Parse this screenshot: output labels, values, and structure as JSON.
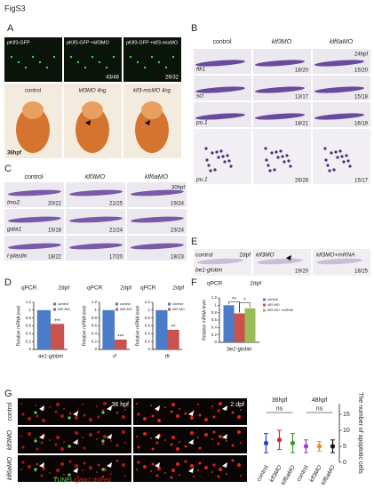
{
  "figure_label": "FigS3",
  "panel_A": {
    "letter": "A",
    "top_images": [
      {
        "label": "pKlf3-GFP"
      },
      {
        "label": "pKlf3-GFP +klf3MO",
        "count": "43/46"
      },
      {
        "label": "pKlf3-GFP +klf3-misMO",
        "count": "26/32"
      }
    ],
    "bottom_images": [
      {
        "label": "control"
      },
      {
        "label": "klf3MO 4ng"
      },
      {
        "label": "klf3-misMO 4ng"
      }
    ],
    "stage": "36hpf"
  },
  "panel_B": {
    "letter": "B",
    "columns": [
      "control",
      "klf3MO",
      "klf6aMO"
    ],
    "stage": "24hpf",
    "rows": [
      {
        "gene": "flk1",
        "counts": [
          "18/20",
          "15/20"
        ]
      },
      {
        "gene": "scl",
        "counts": [
          "13/17",
          "15/18"
        ]
      },
      {
        "gene": "pu.1",
        "counts": [
          "18/21",
          "16/19"
        ]
      },
      {
        "gene": "pu.1",
        "counts": [
          "26/28",
          "15/17"
        ]
      }
    ]
  },
  "panel_C": {
    "letter": "C",
    "columns": [
      "control",
      "klf3MO",
      "klf6aMO"
    ],
    "stage": "30hpf",
    "rows": [
      {
        "gene": "lmo2",
        "counts": [
          "20/22",
          "21/25",
          "19/24"
        ]
      },
      {
        "gene": "gata1",
        "counts": [
          "15/18",
          "21/24",
          "23/24"
        ]
      },
      {
        "gene": "l-plastin",
        "counts": [
          "18/22",
          "17/20",
          "18/23"
        ]
      }
    ]
  },
  "panel_D": {
    "letter": "D"
  },
  "panel_E": {
    "letter": "E",
    "labels": [
      "control",
      "2dpf",
      "klf3MO",
      "klf3MO+mRNA"
    ],
    "gene": "be1-globin",
    "counts": [
      "19/20",
      "18/25"
    ]
  },
  "panel_F": {
    "letter": "F"
  },
  "panel_G": {
    "letter": "G",
    "stages": [
      "36 hpf",
      "2 dpf"
    ],
    "rows": [
      "control",
      "klf3MO",
      "klf6aMO"
    ],
    "caption": [
      "TUNEL",
      "/gata1:dsRed"
    ]
  },
  "chart_data": [
    {
      "type": "bar",
      "title": "qPCR",
      "subtitle": "2dpf",
      "ylabel": "Relative mRNA level",
      "categories": [
        "ae1-globin"
      ],
      "series": [
        {
          "name": "control",
          "color": "#4a7cc9",
          "values": [
            1
          ]
        },
        {
          "name": "klf3 MO",
          "color": "#c9524f",
          "values": [
            0.65
          ]
        }
      ],
      "ylim": [
        0,
        1.2
      ],
      "yticks": [
        0,
        0.2,
        0.4,
        0.6,
        0.8,
        1,
        1.2
      ],
      "annotations": [
        "***"
      ]
    },
    {
      "type": "bar",
      "title": "qPCR",
      "subtitle": "2dpf",
      "ylabel": "Relative mRNA level",
      "categories": [
        "rf"
      ],
      "series": [
        {
          "name": "control",
          "color": "#4a7cc9",
          "values": [
            1
          ]
        },
        {
          "name": "klf3 MO",
          "color": "#c9524f",
          "values": [
            0.25
          ]
        }
      ],
      "ylim": [
        0,
        1.2
      ],
      "yticks": [
        0,
        0.2,
        0.4,
        0.6,
        0.8,
        1,
        1.2
      ],
      "annotations": [
        "***"
      ]
    },
    {
      "type": "bar",
      "title": "qPCR",
      "subtitle": "2dpf",
      "ylabel": "Relative mRNA level",
      "categories": [
        "tfr"
      ],
      "series": [
        {
          "name": "control",
          "color": "#4a7cc9",
          "values": [
            1
          ]
        },
        {
          "name": "klf3 MO",
          "color": "#c9524f",
          "values": [
            0.5
          ]
        }
      ],
      "ylim": [
        0,
        1.2
      ],
      "yticks": [
        0,
        0.2,
        0.4,
        0.6,
        0.8,
        1,
        1.2
      ],
      "annotations": [
        "**"
      ]
    },
    {
      "type": "bar",
      "title": "qPCR",
      "subtitle": "2dpf",
      "ylabel": "Relative mRNA level",
      "categories": [
        "be1-globin"
      ],
      "series": [
        {
          "name": "control",
          "color": "#4a7cc9",
          "values": [
            1
          ]
        },
        {
          "name": "klf3 MO",
          "color": "#c9524f",
          "values": [
            0.78
          ]
        },
        {
          "name": "klf3 MO +mRNA",
          "color": "#9bbb59",
          "values": [
            0.92
          ]
        }
      ],
      "ylim": [
        0,
        1.2
      ],
      "yticks": [
        0,
        0.2,
        0.4,
        0.6,
        0.8,
        1,
        1.2
      ],
      "annotations": [
        "**",
        "*"
      ]
    },
    {
      "type": "errorbar",
      "ylabel": "The number of apoptotic cells",
      "groups": [
        "36hpf",
        "48hpf"
      ],
      "annotations": [
        "ns",
        "ns"
      ],
      "categories": [
        "control",
        "klf3MO",
        "klf6aMO",
        "control",
        "klf3MO",
        "klf6aMO"
      ],
      "values": [
        6,
        7,
        6,
        5,
        5,
        5
      ],
      "errors": [
        3,
        3,
        3,
        2,
        1.5,
        2
      ],
      "colors": [
        "#2b3fd1",
        "#e0202a",
        "#2ca02c",
        "#9b3fd1",
        "#f08a1c",
        "#111111"
      ],
      "ylim": [
        0,
        15
      ],
      "yticks": [
        0,
        5,
        10,
        15
      ]
    }
  ]
}
